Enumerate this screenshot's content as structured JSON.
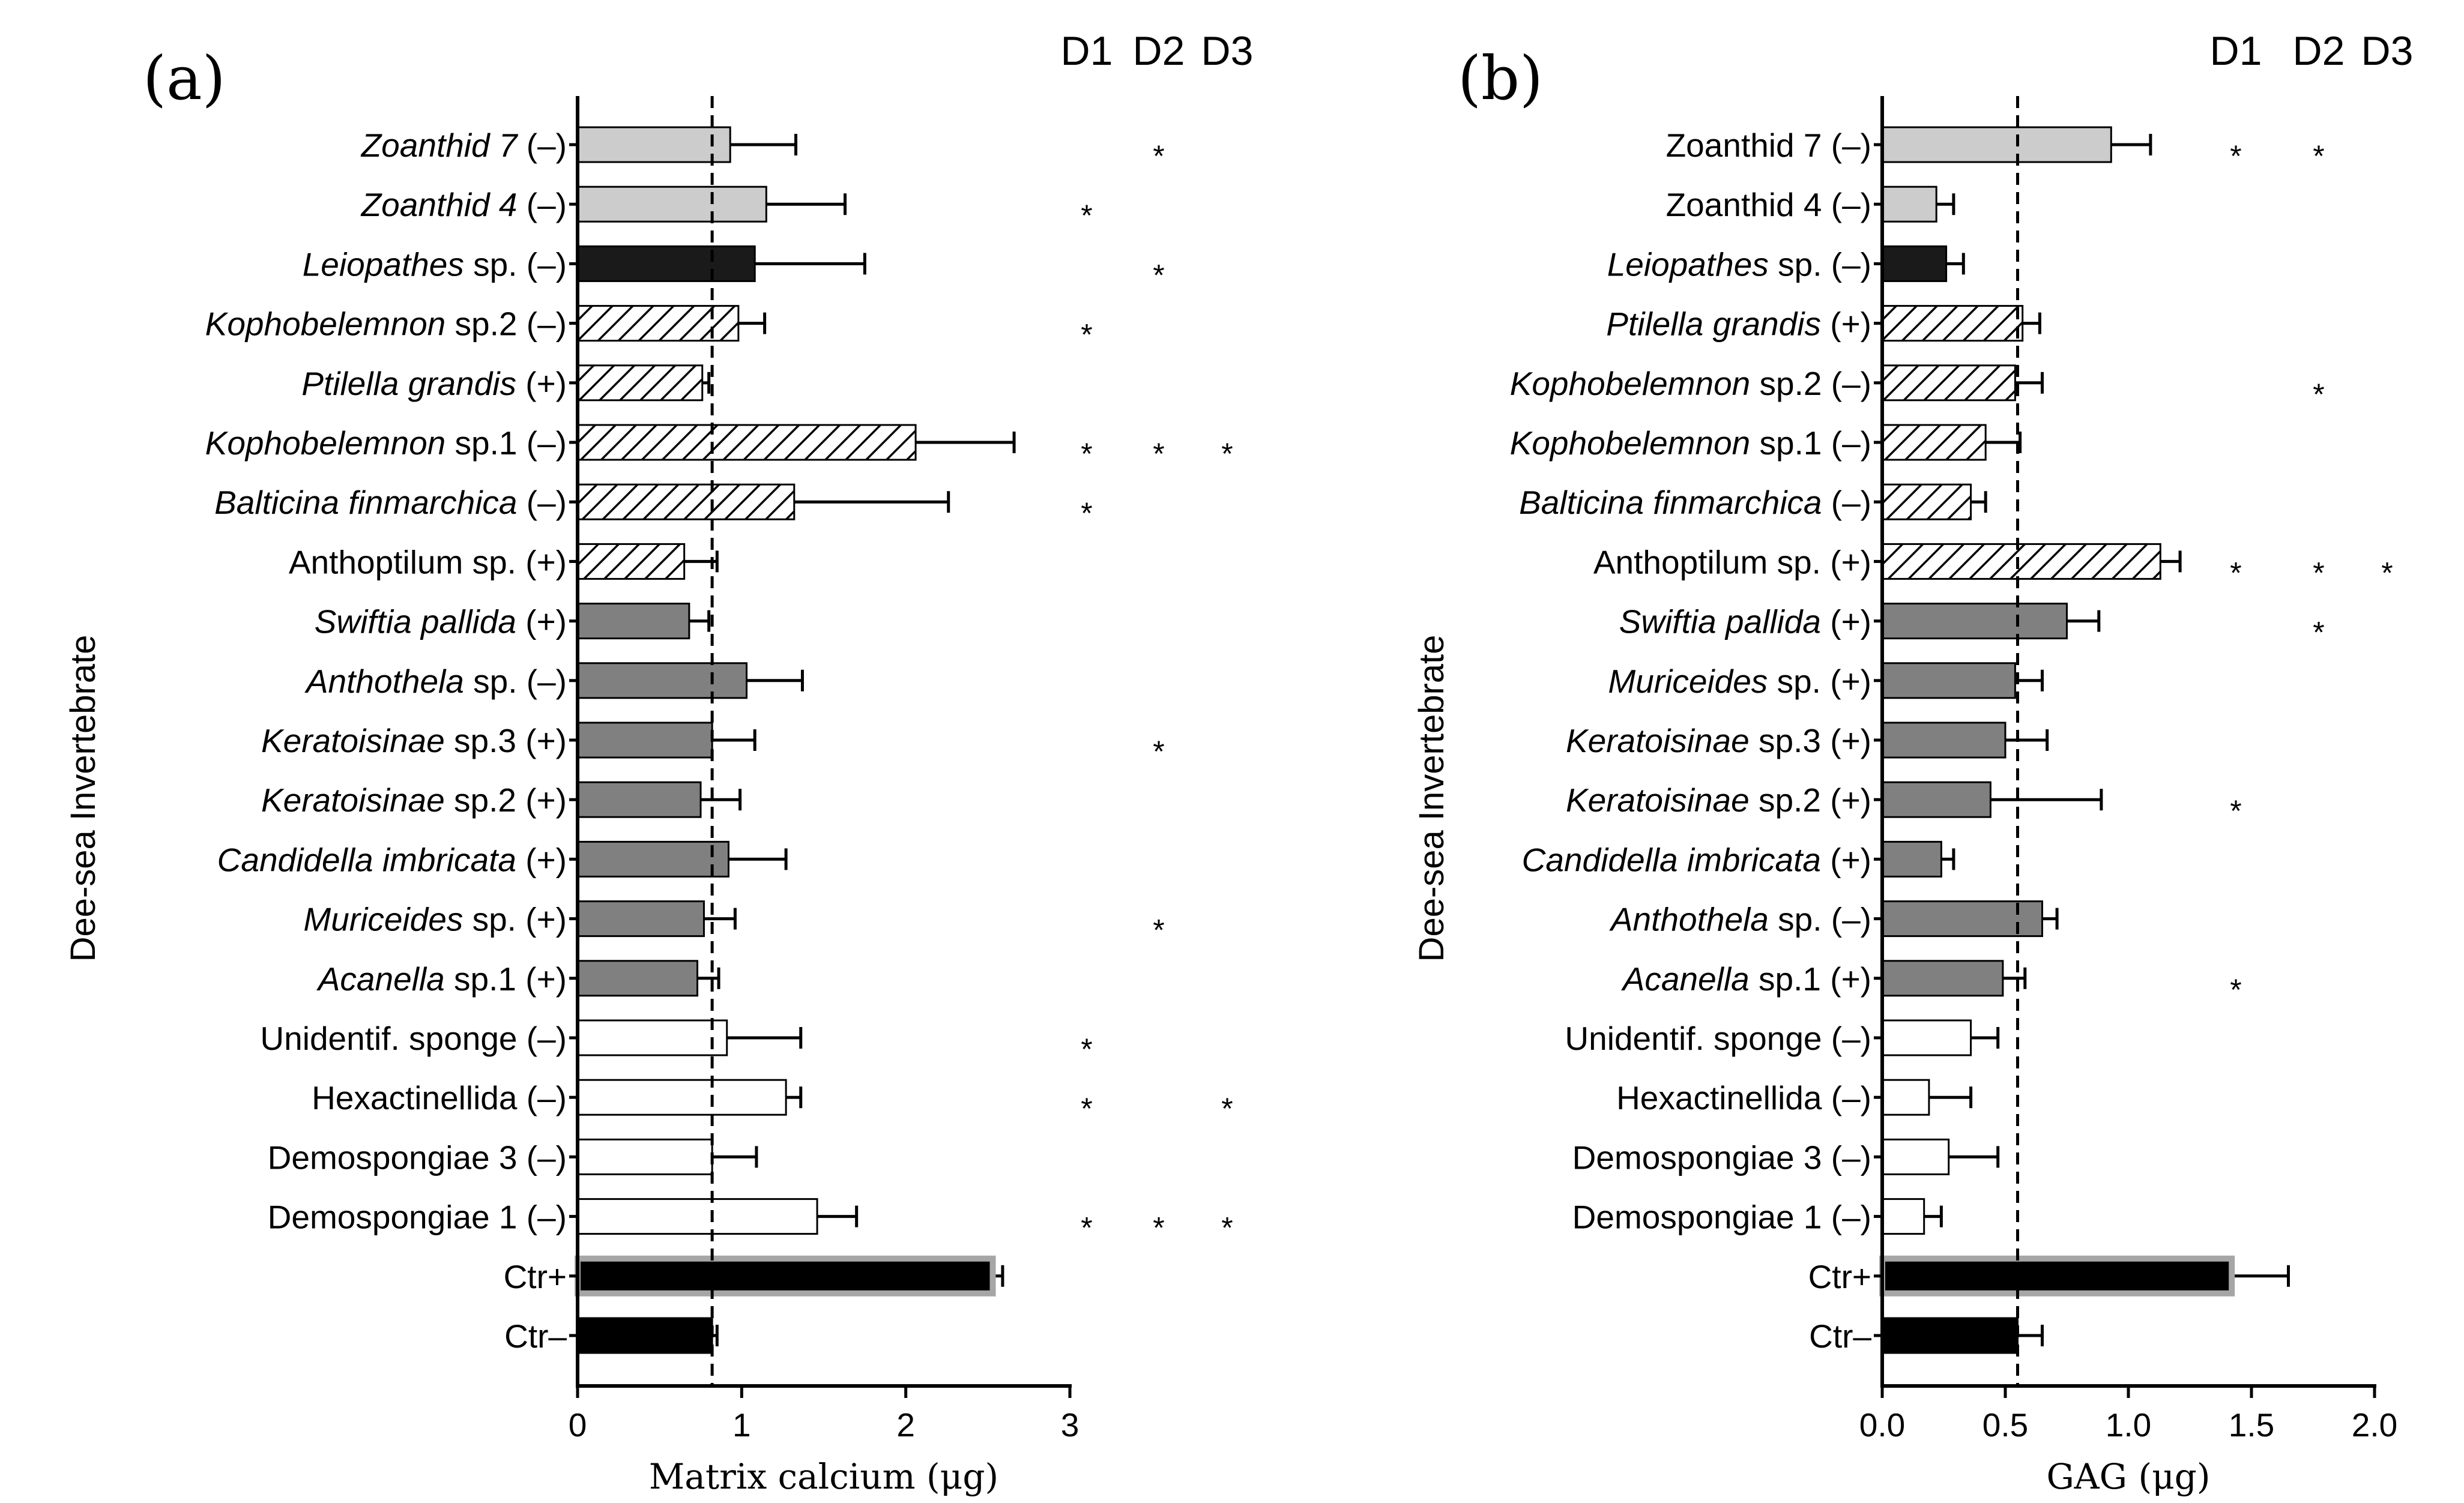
{
  "figure": {
    "panels": [
      {
        "label": "(a)",
        "ylabel": "Dee-sea Invertebrate",
        "xlabel": "Matrix calcium (μg)",
        "xticks": [
          "0",
          "1",
          "2",
          "3"
        ],
        "xmin": 0,
        "xmax": 3,
        "columns": [
          "D1",
          "D2",
          "D3"
        ]
      },
      {
        "label": "(b)",
        "ylabel": "Dee-sea Invertebrate",
        "xlabel": "GAG (μg)",
        "xticks": [
          "0.0",
          "0.5",
          "1.0",
          "1.5",
          "2.0"
        ],
        "xmin": 0,
        "xmax": 2,
        "columns": [
          "D1",
          "D2",
          "D3"
        ]
      }
    ]
  },
  "colors": {
    "light_gray": "#cccccc",
    "black": "#1a1a1a",
    "dark_gray": "#808080",
    "white": "#ffffff",
    "control_outline": "#a6a6a6"
  },
  "chart_data": [
    {
      "type": "bar",
      "orientation": "horizontal",
      "title": "",
      "xlabel": "Matrix calcium (μg)",
      "ylabel": "Dee-sea Invertebrate",
      "xlim": [
        0,
        3
      ],
      "reference_line": 0.82,
      "categories": [
        {
          "it": "Zoanthid 7",
          "sign": "(–)",
          "value": 0.93,
          "err": 0.4,
          "fill": "light_gray",
          "stars": [
            "",
            "*",
            ""
          ]
        },
        {
          "it": "Zoanthid 4",
          "sign": "(–)",
          "value": 1.15,
          "err": 0.48,
          "fill": "light_gray",
          "stars": [
            "*",
            "",
            ""
          ]
        },
        {
          "it": "Leiopathes",
          "rest": " sp.",
          "sign": "(–)",
          "value": 1.08,
          "err": 0.67,
          "fill": "black",
          "stars": [
            "",
            "*",
            ""
          ]
        },
        {
          "it": "Kophobelemnon",
          "rest": " sp.2",
          "sign": "(–)",
          "value": 0.98,
          "err": 0.16,
          "fill": "hatch",
          "stars": [
            "*",
            "",
            ""
          ]
        },
        {
          "it": "Ptilella grandis",
          "sign": "(+)",
          "value": 0.76,
          "err": 0.04,
          "fill": "hatch",
          "stars": [
            "",
            "",
            ""
          ]
        },
        {
          "it": "Kophobelemnon",
          "rest": " sp.1",
          "sign": "(–)",
          "value": 2.06,
          "err": 0.6,
          "fill": "hatch",
          "stars": [
            "*",
            "*",
            "*"
          ]
        },
        {
          "it": "Balticina finmarchica",
          "sign": "(–)",
          "value": 1.32,
          "err": 0.94,
          "fill": "hatch",
          "stars": [
            "*",
            "",
            ""
          ]
        },
        {
          "label": "Anthoptilum sp.",
          "sign": "(+)",
          "value": 0.65,
          "err": 0.2,
          "fill": "hatch",
          "stars": [
            "",
            "",
            ""
          ]
        },
        {
          "it": "Swiftia pallida",
          "sign": "(+)",
          "value": 0.68,
          "err": 0.12,
          "fill": "dark_gray",
          "stars": [
            "",
            "",
            ""
          ]
        },
        {
          "it": "Anthothela",
          "rest": " sp.",
          "sign": "(–)",
          "value": 1.03,
          "err": 0.34,
          "fill": "dark_gray",
          "stars": [
            "",
            "",
            ""
          ]
        },
        {
          "it": "Keratoisinae",
          "rest": " sp.3",
          "sign": "(+)",
          "value": 0.82,
          "err": 0.26,
          "fill": "dark_gray",
          "stars": [
            "",
            "*",
            ""
          ]
        },
        {
          "it": "Keratoisinae",
          "rest": " sp.2",
          "sign": "(+)",
          "value": 0.75,
          "err": 0.24,
          "fill": "dark_gray",
          "stars": [
            "",
            "",
            ""
          ]
        },
        {
          "it": "Candidella imbricata",
          "sign": "(+)",
          "value": 0.92,
          "err": 0.35,
          "fill": "dark_gray",
          "stars": [
            "",
            "",
            ""
          ]
        },
        {
          "it": "Muriceides",
          "rest": " sp.",
          "sign": "(+)",
          "value": 0.77,
          "err": 0.19,
          "fill": "dark_gray",
          "stars": [
            "",
            "*",
            ""
          ]
        },
        {
          "it": "Acanella",
          "rest": " sp.1",
          "sign": "(+)",
          "value": 0.73,
          "err": 0.13,
          "fill": "dark_gray",
          "stars": [
            "",
            "",
            ""
          ]
        },
        {
          "label": "Unidentif. sponge",
          "sign": "(–)",
          "value": 0.91,
          "err": 0.45,
          "fill": "white",
          "stars": [
            "*",
            "",
            ""
          ]
        },
        {
          "label": "Hexactinellida",
          "sign": "(–)",
          "value": 1.27,
          "err": 0.09,
          "fill": "white",
          "stars": [
            "*",
            "",
            "*"
          ]
        },
        {
          "label": "Demospongiae 3",
          "sign": "(–)",
          "value": 0.82,
          "err": 0.27,
          "fill": "white",
          "stars": [
            "",
            "",
            ""
          ]
        },
        {
          "label": "Demospongiae 1",
          "sign": "(–)",
          "value": 1.46,
          "err": 0.24,
          "fill": "white",
          "stars": [
            "*",
            "*",
            "*"
          ]
        },
        {
          "label": "Ctr+",
          "value": 2.53,
          "err": 0.06,
          "fill": "control_pos",
          "stars": [
            "",
            "",
            ""
          ]
        },
        {
          "label": "Ctr–",
          "value": 0.82,
          "err": 0.03,
          "fill": "control_neg",
          "stars": [
            "",
            "",
            ""
          ]
        }
      ]
    },
    {
      "type": "bar",
      "orientation": "horizontal",
      "title": "",
      "xlabel": "GAG (μg)",
      "ylabel": "Dee-sea Invertebrate",
      "xlim": [
        0,
        2
      ],
      "reference_line": 0.55,
      "categories": [
        {
          "label": "Zoanthid 7",
          "sign": "(–)",
          "value": 0.93,
          "err": 0.16,
          "fill": "light_gray",
          "stars": [
            "*",
            "*",
            ""
          ]
        },
        {
          "label": "Zoanthid 4",
          "sign": "(–)",
          "value": 0.22,
          "err": 0.07,
          "fill": "light_gray",
          "stars": [
            "",
            "",
            ""
          ]
        },
        {
          "it": "Leiopathes",
          "rest": " sp.",
          "sign": "(–)",
          "value": 0.26,
          "err": 0.07,
          "fill": "black",
          "stars": [
            "",
            "",
            ""
          ]
        },
        {
          "it": "Ptilella grandis",
          "sign": "(+)",
          "value": 0.57,
          "err": 0.07,
          "fill": "hatch",
          "stars": [
            "",
            "",
            ""
          ]
        },
        {
          "it": "Kophobelemnon",
          "rest": " sp.2",
          "sign": "(–)",
          "value": 0.54,
          "err": 0.11,
          "fill": "hatch",
          "stars": [
            "",
            "*",
            ""
          ]
        },
        {
          "it": "Kophobelemnon",
          "rest": " sp.1",
          "sign": "(–)",
          "value": 0.42,
          "err": 0.14,
          "fill": "hatch",
          "stars": [
            "",
            "",
            ""
          ]
        },
        {
          "it": "Balticina finmarchica",
          "sign": "(–)",
          "value": 0.36,
          "err": 0.06,
          "fill": "hatch",
          "stars": [
            "",
            "",
            ""
          ]
        },
        {
          "label": "Anthoptilum sp.",
          "sign": "(+)",
          "value": 1.13,
          "err": 0.08,
          "fill": "hatch",
          "stars": [
            "*",
            "*",
            "*"
          ]
        },
        {
          "it": "Swiftia pallida",
          "sign": "(+)",
          "value": 0.75,
          "err": 0.13,
          "fill": "dark_gray",
          "stars": [
            "",
            "*",
            ""
          ]
        },
        {
          "it": "Muriceides",
          "rest": " sp.",
          "sign": "(+)",
          "value": 0.54,
          "err": 0.11,
          "fill": "dark_gray",
          "stars": [
            "",
            "",
            ""
          ]
        },
        {
          "it": "Keratoisinae",
          "rest": " sp.3",
          "sign": "(+)",
          "value": 0.5,
          "err": 0.17,
          "fill": "dark_gray",
          "stars": [
            "",
            "",
            ""
          ]
        },
        {
          "it": "Keratoisinae",
          "rest": " sp.2",
          "sign": "(+)",
          "value": 0.44,
          "err": 0.45,
          "fill": "dark_gray",
          "stars": [
            "*",
            "",
            ""
          ]
        },
        {
          "it": "Candidella imbricata",
          "sign": "(+)",
          "value": 0.24,
          "err": 0.05,
          "fill": "dark_gray",
          "stars": [
            "",
            "",
            ""
          ]
        },
        {
          "it": "Anthothela",
          "rest": " sp.",
          "sign": "(–)",
          "value": 0.65,
          "err": 0.06,
          "fill": "dark_gray",
          "stars": [
            "",
            "",
            ""
          ]
        },
        {
          "it": "Acanella",
          "rest": " sp.1",
          "sign": "(+)",
          "value": 0.49,
          "err": 0.09,
          "fill": "dark_gray",
          "stars": [
            "*",
            "",
            ""
          ]
        },
        {
          "label": "Unidentif. sponge",
          "sign": "(–)",
          "value": 0.36,
          "err": 0.11,
          "fill": "white",
          "stars": [
            "",
            "",
            ""
          ]
        },
        {
          "label": "Hexactinellida",
          "sign": "(–)",
          "value": 0.19,
          "err": 0.17,
          "fill": "white",
          "stars": [
            "",
            "",
            ""
          ]
        },
        {
          "label": "Demospongiae 3",
          "sign": "(–)",
          "value": 0.27,
          "err": 0.2,
          "fill": "white",
          "stars": [
            "",
            "",
            ""
          ]
        },
        {
          "label": "Demospongiae 1",
          "sign": "(–)",
          "value": 0.17,
          "err": 0.07,
          "fill": "white",
          "stars": [
            "",
            "",
            ""
          ]
        },
        {
          "label": "Ctr+",
          "value": 1.42,
          "err": 0.23,
          "fill": "control_pos",
          "stars": [
            "",
            "",
            ""
          ]
        },
        {
          "label": "Ctr–",
          "value": 0.55,
          "err": 0.1,
          "fill": "control_neg",
          "stars": [
            "",
            "",
            ""
          ]
        }
      ]
    }
  ]
}
